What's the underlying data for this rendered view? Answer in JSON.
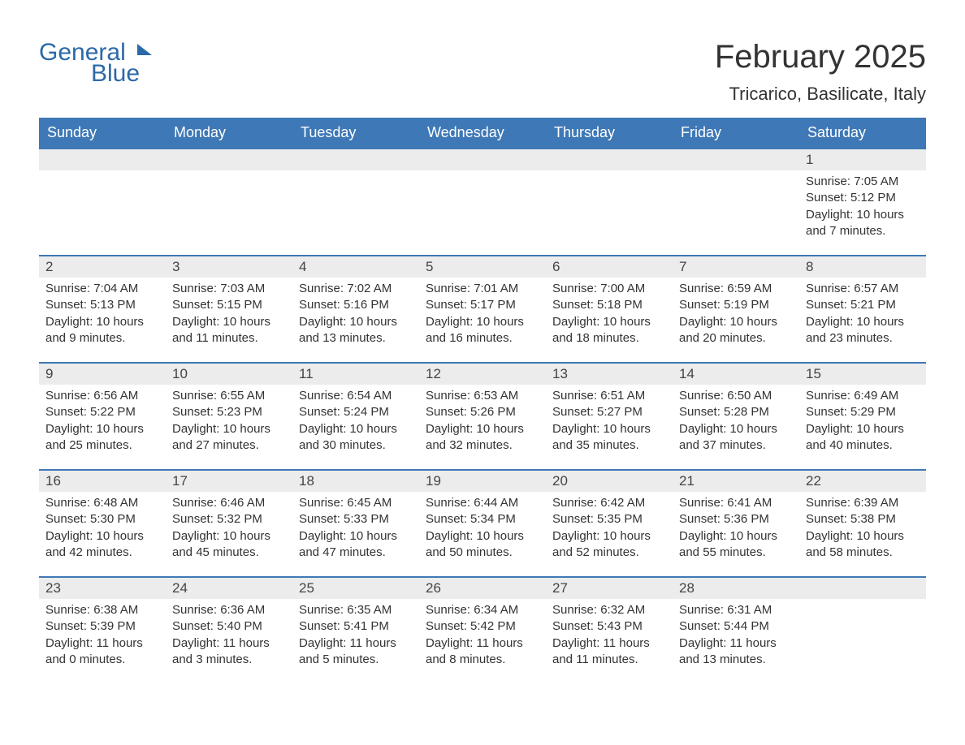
{
  "logo": {
    "line1": "General",
    "line2": "Blue"
  },
  "title": "February 2025",
  "location": "Tricarico, Basilicate, Italy",
  "colors": {
    "header_bg": "#3e78b6",
    "header_text": "#ffffff",
    "daynum_bg": "#ececec",
    "brand": "#2c69a8",
    "text": "#333333"
  },
  "typography": {
    "title_fontsize": 40,
    "location_fontsize": 22,
    "weekday_fontsize": 18,
    "body_fontsize": 15
  },
  "weekdays": [
    "Sunday",
    "Monday",
    "Tuesday",
    "Wednesday",
    "Thursday",
    "Friday",
    "Saturday"
  ],
  "labels": {
    "sunrise": "Sunrise:",
    "sunset": "Sunset:",
    "daylight": "Daylight:"
  },
  "weeks": [
    [
      {
        "empty": true
      },
      {
        "empty": true
      },
      {
        "empty": true
      },
      {
        "empty": true
      },
      {
        "empty": true
      },
      {
        "empty": true
      },
      {
        "day": "1",
        "sunrise": "7:05 AM",
        "sunset": "5:12 PM",
        "daylight": "10 hours and 7 minutes."
      }
    ],
    [
      {
        "day": "2",
        "sunrise": "7:04 AM",
        "sunset": "5:13 PM",
        "daylight": "10 hours and 9 minutes."
      },
      {
        "day": "3",
        "sunrise": "7:03 AM",
        "sunset": "5:15 PM",
        "daylight": "10 hours and 11 minutes."
      },
      {
        "day": "4",
        "sunrise": "7:02 AM",
        "sunset": "5:16 PM",
        "daylight": "10 hours and 13 minutes."
      },
      {
        "day": "5",
        "sunrise": "7:01 AM",
        "sunset": "5:17 PM",
        "daylight": "10 hours and 16 minutes."
      },
      {
        "day": "6",
        "sunrise": "7:00 AM",
        "sunset": "5:18 PM",
        "daylight": "10 hours and 18 minutes."
      },
      {
        "day": "7",
        "sunrise": "6:59 AM",
        "sunset": "5:19 PM",
        "daylight": "10 hours and 20 minutes."
      },
      {
        "day": "8",
        "sunrise": "6:57 AM",
        "sunset": "5:21 PM",
        "daylight": "10 hours and 23 minutes."
      }
    ],
    [
      {
        "day": "9",
        "sunrise": "6:56 AM",
        "sunset": "5:22 PM",
        "daylight": "10 hours and 25 minutes."
      },
      {
        "day": "10",
        "sunrise": "6:55 AM",
        "sunset": "5:23 PM",
        "daylight": "10 hours and 27 minutes."
      },
      {
        "day": "11",
        "sunrise": "6:54 AM",
        "sunset": "5:24 PM",
        "daylight": "10 hours and 30 minutes."
      },
      {
        "day": "12",
        "sunrise": "6:53 AM",
        "sunset": "5:26 PM",
        "daylight": "10 hours and 32 minutes."
      },
      {
        "day": "13",
        "sunrise": "6:51 AM",
        "sunset": "5:27 PM",
        "daylight": "10 hours and 35 minutes."
      },
      {
        "day": "14",
        "sunrise": "6:50 AM",
        "sunset": "5:28 PM",
        "daylight": "10 hours and 37 minutes."
      },
      {
        "day": "15",
        "sunrise": "6:49 AM",
        "sunset": "5:29 PM",
        "daylight": "10 hours and 40 minutes."
      }
    ],
    [
      {
        "day": "16",
        "sunrise": "6:48 AM",
        "sunset": "5:30 PM",
        "daylight": "10 hours and 42 minutes."
      },
      {
        "day": "17",
        "sunrise": "6:46 AM",
        "sunset": "5:32 PM",
        "daylight": "10 hours and 45 minutes."
      },
      {
        "day": "18",
        "sunrise": "6:45 AM",
        "sunset": "5:33 PM",
        "daylight": "10 hours and 47 minutes."
      },
      {
        "day": "19",
        "sunrise": "6:44 AM",
        "sunset": "5:34 PM",
        "daylight": "10 hours and 50 minutes."
      },
      {
        "day": "20",
        "sunrise": "6:42 AM",
        "sunset": "5:35 PM",
        "daylight": "10 hours and 52 minutes."
      },
      {
        "day": "21",
        "sunrise": "6:41 AM",
        "sunset": "5:36 PM",
        "daylight": "10 hours and 55 minutes."
      },
      {
        "day": "22",
        "sunrise": "6:39 AM",
        "sunset": "5:38 PM",
        "daylight": "10 hours and 58 minutes."
      }
    ],
    [
      {
        "day": "23",
        "sunrise": "6:38 AM",
        "sunset": "5:39 PM",
        "daylight": "11 hours and 0 minutes."
      },
      {
        "day": "24",
        "sunrise": "6:36 AM",
        "sunset": "5:40 PM",
        "daylight": "11 hours and 3 minutes."
      },
      {
        "day": "25",
        "sunrise": "6:35 AM",
        "sunset": "5:41 PM",
        "daylight": "11 hours and 5 minutes."
      },
      {
        "day": "26",
        "sunrise": "6:34 AM",
        "sunset": "5:42 PM",
        "daylight": "11 hours and 8 minutes."
      },
      {
        "day": "27",
        "sunrise": "6:32 AM",
        "sunset": "5:43 PM",
        "daylight": "11 hours and 11 minutes."
      },
      {
        "day": "28",
        "sunrise": "6:31 AM",
        "sunset": "5:44 PM",
        "daylight": "11 hours and 13 minutes."
      },
      {
        "empty": true
      }
    ]
  ]
}
